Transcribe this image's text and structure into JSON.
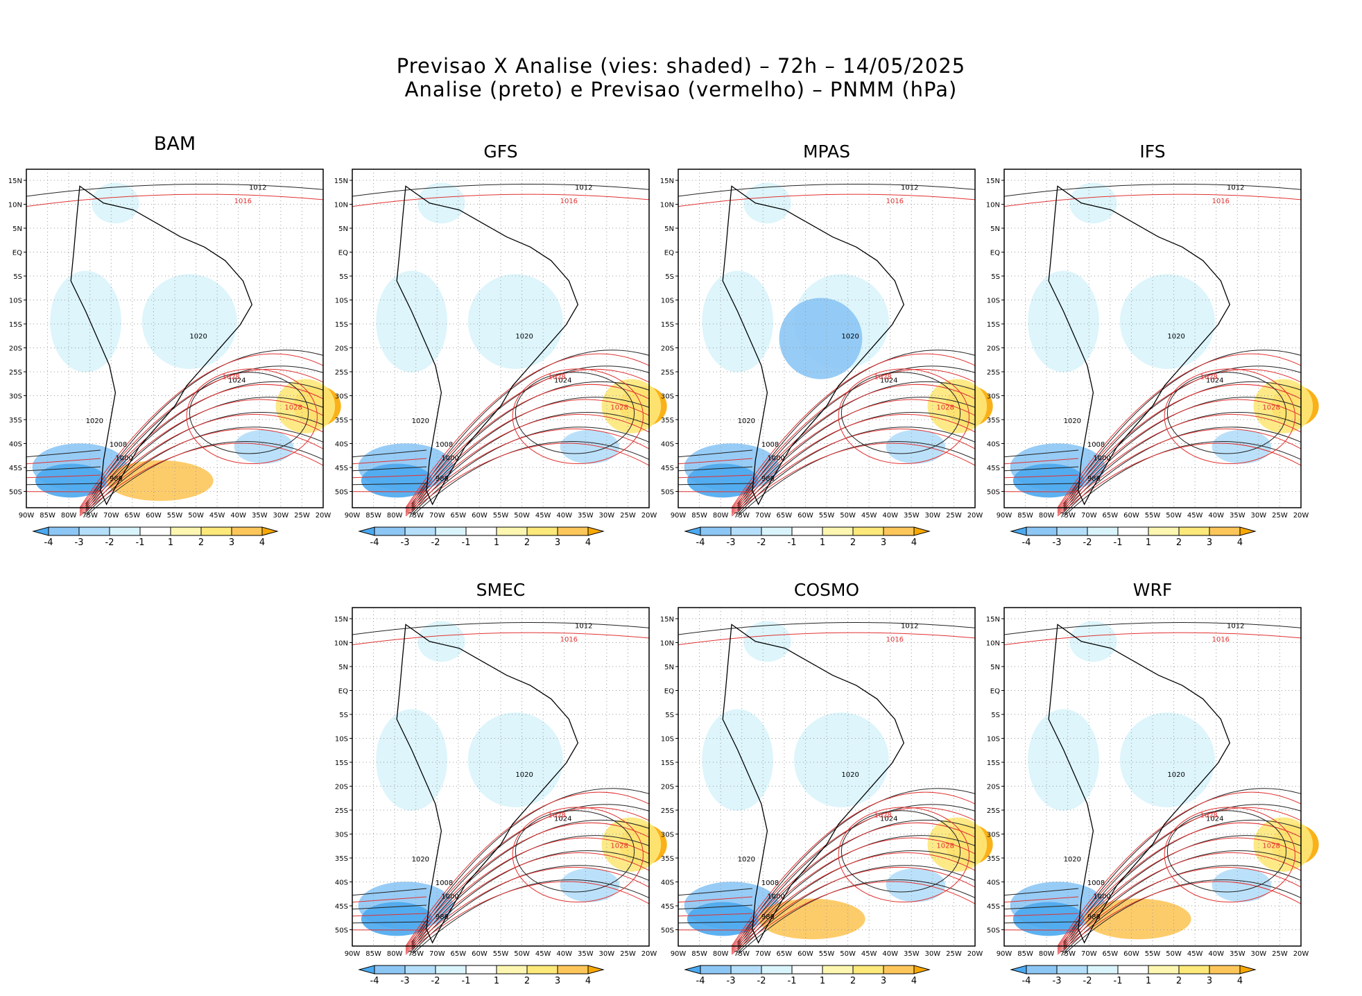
{
  "figure": {
    "title_line1": "Previsao X Analise (vies: shaded) – 72h – 14/05/2025",
    "title_line2": "Analise (preto) e Previsao (vermelho) – PNMM (hPa)"
  },
  "axes": {
    "lon_labels": [
      "90W",
      "85W",
      "80W",
      "75W",
      "70W",
      "65W",
      "60W",
      "55W",
      "50W",
      "45W",
      "40W",
      "35W",
      "30W",
      "25W",
      "20W"
    ],
    "lat_labels": [
      "15N",
      "10N",
      "5N",
      "EQ",
      "5S",
      "10S",
      "15S",
      "20S",
      "25S",
      "30S",
      "35S",
      "40S",
      "45S",
      "50S"
    ]
  },
  "colorbar": {
    "labels": [
      "-4",
      "-3",
      "-2",
      "-1",
      "1",
      "2",
      "3",
      "4"
    ],
    "colors": [
      "#4aa9f0",
      "#8cc6f5",
      "#b4def9",
      "#d9f4fb",
      "#ffffff",
      "#fdf6b0",
      "#fde87a",
      "#fdc65a",
      "#f9a800"
    ]
  },
  "isobar_labels": [
    "1016",
    "1012",
    "1008",
    "1004",
    "1000",
    "996",
    "992",
    "988",
    "1020",
    "1024",
    "1028"
  ],
  "panels": [
    {
      "name": "BAM",
      "col": 0,
      "row": 0
    },
    {
      "name": "GFS",
      "col": 1,
      "row": 0
    },
    {
      "name": "MPAS",
      "col": 2,
      "row": 0
    },
    {
      "name": "IFS",
      "col": 3,
      "row": 0
    },
    {
      "name": "SMEC",
      "col": 1,
      "row": 1
    },
    {
      "name": "COSMO",
      "col": 2,
      "row": 1
    },
    {
      "name": "WRF",
      "col": 3,
      "row": 1
    }
  ]
}
